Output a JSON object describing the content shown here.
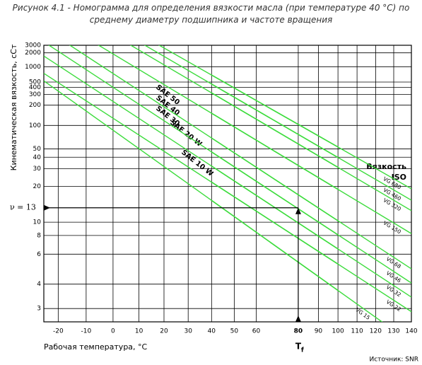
{
  "chart_data": {
    "type": "line",
    "title": "Рисунок 4.1 - Номограмма для определения вязкости масла (при температуре 40 °С) по среднему диаметру подшипника и частоте вращения",
    "x_label": "Рабочая температура, °C",
    "y_label": "Кинематическая вязкость, сСт",
    "x_scale": "log-absolute-temperature",
    "y_scale": "walther",
    "xlim": [
      -25,
      140
    ],
    "ylim": [
      2.6,
      3000
    ],
    "xticks": [
      -20,
      -10,
      0,
      10,
      20,
      30,
      40,
      50,
      60,
      80,
      90,
      100,
      110,
      120,
      130,
      140
    ],
    "yticks": [
      3,
      4,
      6,
      8,
      10,
      20,
      30,
      40,
      50,
      100,
      200,
      300,
      400,
      500,
      1000,
      2000,
      3000
    ],
    "grid": true,
    "legend_title": [
      "Вязкость",
      "ISO"
    ],
    "x": [
      40,
      100
    ],
    "series": [
      {
        "name": "VG 680",
        "color": "#3ddc3d",
        "values": [
          680,
          52.6
        ]
      },
      {
        "name": "VG 460",
        "color": "#3ddc3d",
        "values": [
          460,
          39.7
        ]
      },
      {
        "name": "VG 320",
        "color": "#3ddc3d",
        "values": [
          320,
          31
        ]
      },
      {
        "name": "VG 150",
        "color": "#3ddc3d",
        "values": [
          150,
          18.8
        ]
      },
      {
        "name": "VG 68",
        "color": "#3ddc3d",
        "values": [
          68,
          10.25
        ]
      },
      {
        "name": "VG 46",
        "color": "#3ddc3d",
        "values": [
          46,
          8.08
        ]
      },
      {
        "name": "VG 32",
        "color": "#3ddc3d",
        "values": [
          32,
          6.48
        ]
      },
      {
        "name": "VG 22",
        "color": "#3ddc3d",
        "values": [
          22,
          5.21
        ]
      },
      {
        "name": "VG 15",
        "color": "#3ddc3d",
        "values": [
          15,
          3.7
        ]
      }
    ],
    "annotations": [
      "SAE 50",
      "SAE 40",
      "SAE 30",
      "SAE 20 W",
      "SAE 10 W"
    ],
    "reading": {
      "label": "ν = 13",
      "viscosity": 13,
      "temperature": 80,
      "temperature_label": "T",
      "temperature_subscript": "f"
    },
    "source": "Источник: SNR"
  }
}
